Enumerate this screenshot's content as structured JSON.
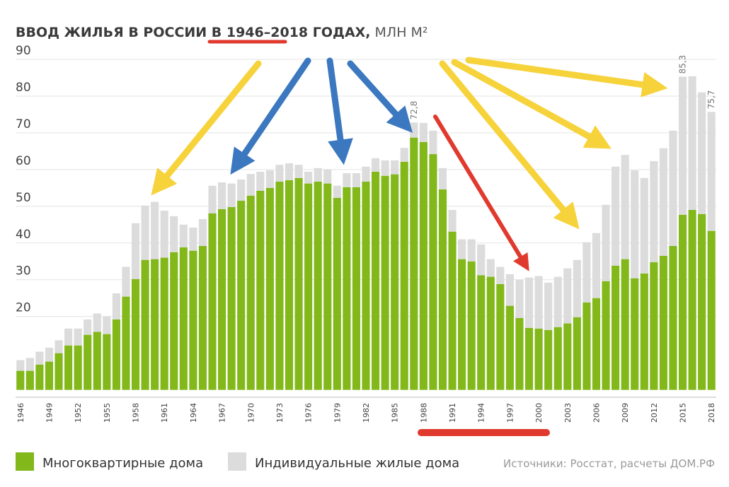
{
  "chart_data": {
    "type": "stacked_bar",
    "title": "ВВОД ЖИЛЬЯ В РОССИИ В 1946–2018 ГОДАХ,",
    "title_unit": "МЛН М²",
    "source": "Источники: Росстат, расчеты ДОМ.РФ",
    "categories": [
      "1946",
      null,
      null,
      "1949",
      null,
      null,
      "1952",
      null,
      null,
      "1955",
      null,
      null,
      "1958",
      null,
      null,
      "1961",
      null,
      null,
      "1964",
      null,
      null,
      "1967",
      null,
      null,
      "1970",
      null,
      null,
      "1973",
      null,
      null,
      "1976",
      null,
      null,
      "1979",
      null,
      null,
      "1982",
      null,
      null,
      "1985",
      null,
      null,
      "1988",
      null,
      null,
      "1991",
      null,
      null,
      "1994",
      null,
      null,
      "1997",
      null,
      null,
      "2000",
      null,
      null,
      "2003",
      null,
      null,
      "2006",
      null,
      null,
      "2009",
      null,
      null,
      "2012",
      null,
      null,
      "2015",
      null,
      null,
      "2018"
    ],
    "series": [
      {
        "name": "Многоквартирные дома",
        "color": "#82b81a",
        "values": [
          5.2,
          5.2,
          6.9,
          7.7,
          10.0,
          12.1,
          12.1,
          15.0,
          15.8,
          15.2,
          19.2,
          25.4,
          30.2,
          35.4,
          35.6,
          36.0,
          37.5,
          38.8,
          37.9,
          39.2,
          48.1,
          49.2,
          49.8,
          51.5,
          52.9,
          54.2,
          55.0,
          56.7,
          57.1,
          57.7,
          56.2,
          56.7,
          56.2,
          52.3,
          55.2,
          55.2,
          56.7,
          59.4,
          58.3,
          58.7,
          62.1,
          68.7,
          67.5,
          64.2,
          54.6,
          43.1,
          35.6,
          35.0,
          31.2,
          30.8,
          28.8,
          22.9,
          19.6,
          16.9,
          16.7,
          16.3,
          17.1,
          18.1,
          19.8,
          23.8,
          25.0,
          29.6,
          33.8,
          35.6,
          30.4,
          31.7,
          34.8,
          36.5,
          39.2,
          47.7,
          49.0,
          47.9,
          43.3
        ]
      },
      {
        "name": "Индивидуальные жилые дома",
        "color": "#dcdcdc",
        "values": [
          2.9,
          3.5,
          3.5,
          3.8,
          3.5,
          4.6,
          4.6,
          4.2,
          5.0,
          4.8,
          7.1,
          8.1,
          15.2,
          14.8,
          15.6,
          12.8,
          9.8,
          6.2,
          6.3,
          7.3,
          7.5,
          7.3,
          6.4,
          5.8,
          5.9,
          5.2,
          4.8,
          4.6,
          4.6,
          3.6,
          3.2,
          3.7,
          3.8,
          3.3,
          3.8,
          3.8,
          4.1,
          3.7,
          4.2,
          3.8,
          3.8,
          4.1,
          5.2,
          6.4,
          5.8,
          5.9,
          5.4,
          6.0,
          8.4,
          4.8,
          4.7,
          8.6,
          10.4,
          13.7,
          14.3,
          12.9,
          13.7,
          15.0,
          15.6,
          16.4,
          17.7,
          20.8,
          27.0,
          28.4,
          29.4,
          26.0,
          27.5,
          29.3,
          31.4,
          37.6,
          36.4,
          33.1,
          32.4
        ]
      }
    ],
    "total_labels": [
      {
        "index": 41,
        "value": 72.8,
        "label": "72,8"
      },
      {
        "index": 69,
        "value": 85.3,
        "label": "85,3"
      },
      {
        "index": 72,
        "value": 75.7,
        "label": "75,7"
      }
    ],
    "ylim": [
      -2,
      90
    ],
    "yticks": [
      20,
      30,
      40,
      50,
      60,
      70,
      80,
      90
    ],
    "grid": true
  }
}
